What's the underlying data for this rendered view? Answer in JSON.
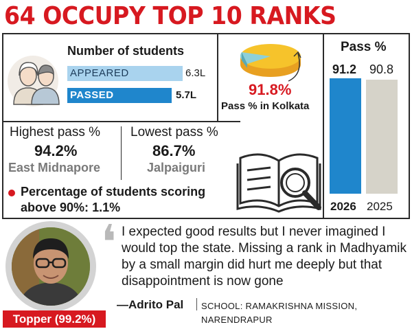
{
  "headline": "64 OCCUPY TOP 10 RANKS",
  "students": {
    "title": "Number of students",
    "appeared_label": "APPEARED",
    "appeared_value": "6.3L",
    "passed_label": "PASSED",
    "passed_value": "5.7L"
  },
  "highest": {
    "label": "Highest pass %",
    "value": "94.2%",
    "place": "East Midnapore"
  },
  "lowest": {
    "label": "Lowest pass %",
    "value": "86.7%",
    "place": "Jalpaiguri"
  },
  "above90": {
    "label": "Percentage of students scoring above 90%:",
    "value": "1.1%"
  },
  "kolkata": {
    "value": "91.8%",
    "label": "Pass % in Kolkata",
    "fraction": 0.918
  },
  "pass_chart": {
    "title": "Pass %",
    "bars": [
      {
        "year": "2026",
        "value": "91.2"
      },
      {
        "year": "2025",
        "value": "90.8"
      }
    ]
  },
  "quote": {
    "text": "I expected good results but I never imagined I would top the state. Missing a rank in Madhyamik by a small margin did hurt me deeply but that disappointment is now gone",
    "author": "—Adrito Pal",
    "school": "SCHOOL: RAMAKRISHNA MISSION, NARENDRAPUR"
  },
  "topper": {
    "badge": "Topper (99.2%)"
  },
  "colors": {
    "red": "#d71920",
    "blue": "#1f86cc",
    "light_blue": "#a9d3ee",
    "grey_bar": "#d6d3c9"
  },
  "icons": [
    "students-icon",
    "pie-chart-icon",
    "book-magnifier-icon",
    "quote-mark-icon",
    "topper-photo"
  ]
}
